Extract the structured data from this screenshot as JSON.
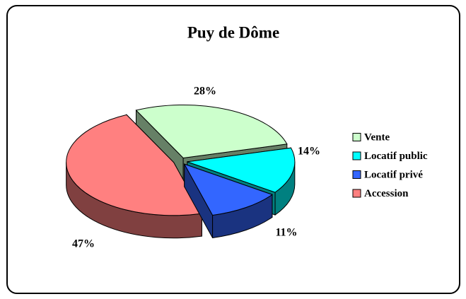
{
  "chart_data": {
    "type": "pie3d",
    "title": "Puy de Dôme",
    "categories": [
      "Vente",
      "Locatif public",
      "Locatif privé",
      "Accession"
    ],
    "values": [
      28,
      14,
      11,
      47
    ],
    "value_labels": [
      "28%",
      "14%",
      "11%",
      "47%"
    ],
    "colors": [
      "#ccffcc",
      "#00ffff",
      "#3366ff",
      "#ff8080"
    ],
    "legend": "right"
  }
}
